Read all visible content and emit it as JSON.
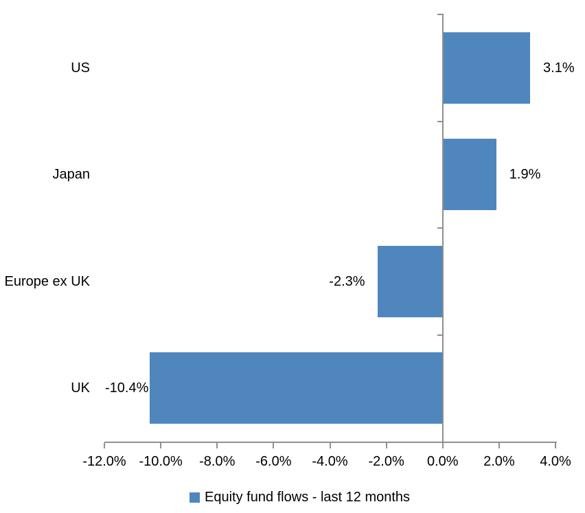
{
  "chart_data": {
    "type": "bar",
    "orientation": "horizontal",
    "title": "",
    "categories": [
      "US",
      "Japan",
      "Europe ex UK",
      "UK"
    ],
    "values": [
      3.1,
      1.9,
      -2.3,
      -10.4
    ],
    "data_labels": [
      "3.1%",
      "1.9%",
      "-2.3%",
      "-10.4%"
    ],
    "series": [
      {
        "name": "Equity fund flows - last 12 months",
        "values": [
          3.1,
          1.9,
          -2.3,
          -10.4
        ]
      }
    ],
    "xlim": [
      -12,
      4
    ],
    "x_tick_values": [
      -12,
      -10,
      -8,
      -6,
      -4,
      -2,
      0,
      2,
      4
    ],
    "x_tick_labels": [
      "-12.0%",
      "-10.0%",
      "-8.0%",
      "-6.0%",
      "-4.0%",
      "-2.0%",
      "0.0%",
      "2.0%",
      "4.0%"
    ],
    "grid": false,
    "legend_position": "bottom",
    "colors": {
      "bar": "#4F86BE",
      "axis": "#8F8F8F",
      "text": "#000000",
      "background": "#FFFFFF"
    }
  },
  "legend": {
    "label": "Equity fund flows - last 12 months"
  }
}
